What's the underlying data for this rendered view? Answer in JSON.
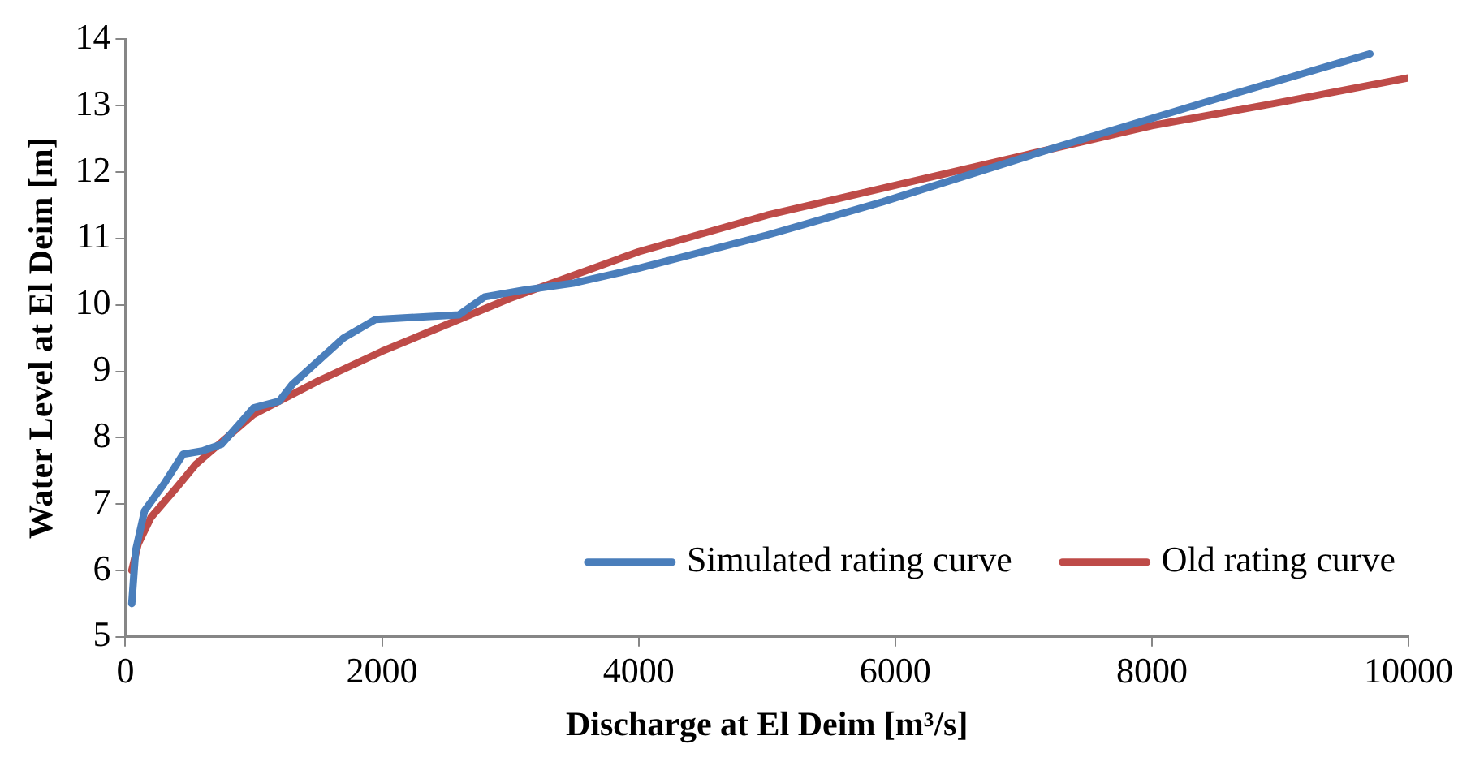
{
  "chart_data": {
    "type": "line",
    "xlabel": "Discharge at El Deim [m³/s]",
    "ylabel": "Water Level at El Deim [m]",
    "xlim": [
      0,
      10000
    ],
    "xticks": [
      0,
      2000,
      4000,
      6000,
      8000,
      10000
    ],
    "ylim": [
      5,
      14
    ],
    "yticks": [
      5,
      6,
      7,
      8,
      9,
      10,
      11,
      12,
      13,
      14
    ],
    "grid": false,
    "legend": "bottom right",
    "marker": "none",
    "line_style": "solid",
    "series": [
      {
        "name": "Simulated rating curve",
        "color": "#4a7ebb",
        "x": [
          50,
          80,
          150,
          300,
          450,
          600,
          750,
          1000,
          1200,
          1300,
          1700,
          1950,
          2600,
          2800,
          3100,
          3500,
          4000,
          5000,
          5900,
          7300,
          8500,
          9700
        ],
        "values": [
          5.5,
          6.3,
          6.9,
          7.3,
          7.75,
          7.8,
          7.9,
          8.45,
          8.55,
          8.8,
          9.5,
          9.78,
          9.85,
          10.12,
          10.22,
          10.33,
          10.55,
          11.05,
          11.55,
          12.4,
          13.1,
          13.78
        ]
      },
      {
        "name": "Old rating curve",
        "color": "#be4b48",
        "x": [
          50,
          100,
          200,
          400,
          550,
          1000,
          1500,
          2000,
          2500,
          3000,
          4000,
          5000,
          6000,
          7000,
          8000,
          9000,
          10000
        ],
        "values": [
          6.0,
          6.4,
          6.8,
          7.25,
          7.6,
          8.35,
          8.85,
          9.3,
          9.7,
          10.1,
          10.8,
          11.35,
          11.8,
          12.25,
          12.7,
          13.05,
          13.42
        ]
      }
    ]
  }
}
